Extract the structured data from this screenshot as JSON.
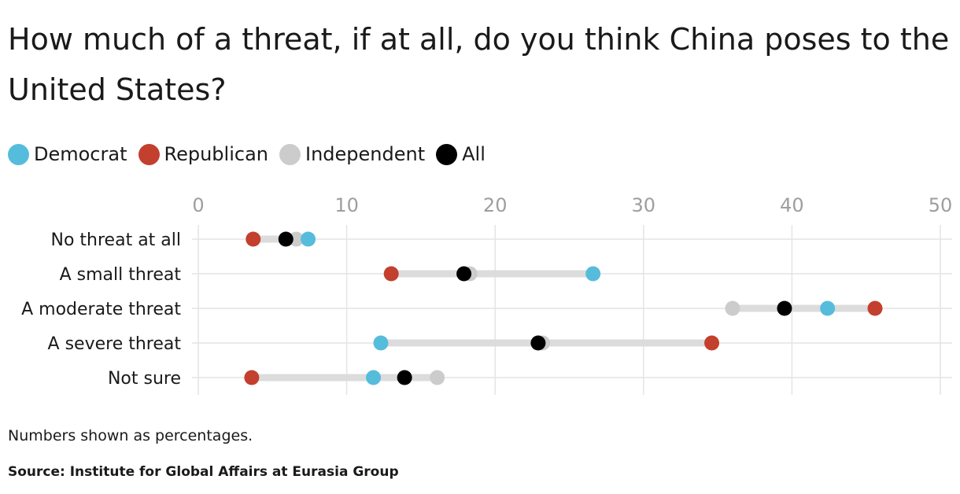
{
  "chart_data": {
    "type": "dumbbell",
    "title": "How much of a threat, if at all, do you think China poses to the United States?",
    "categories": [
      "No threat at all",
      "A small threat",
      "A moderate threat",
      "A severe threat",
      "Not sure"
    ],
    "series": [
      {
        "name": "Democrat",
        "color": "#56bcdc",
        "values": [
          7.4,
          26.6,
          42.4,
          12.3,
          11.8
        ]
      },
      {
        "name": "Republican",
        "color": "#c33f2e",
        "values": [
          3.7,
          13.0,
          45.6,
          34.6,
          3.6
        ]
      },
      {
        "name": "Independent",
        "color": "#cccccc",
        "values": [
          6.6,
          18.3,
          36.0,
          23.2,
          16.1
        ]
      },
      {
        "name": "All",
        "color": "#000000",
        "values": [
          5.9,
          17.9,
          39.5,
          22.9,
          13.9
        ]
      }
    ],
    "xlim": [
      0,
      50
    ],
    "xticks": [
      0,
      10,
      20,
      30,
      40,
      50
    ],
    "grid": true,
    "legend_position": "top-left"
  },
  "notes": {
    "text": "Numbers shown as percentages.",
    "source": "Source: Institute for Global Affairs at Eurasia Group"
  }
}
